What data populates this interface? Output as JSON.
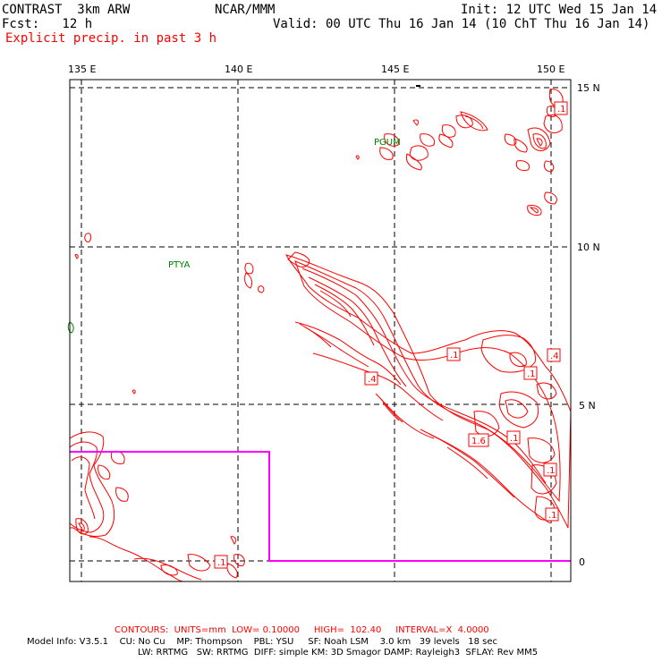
{
  "header": {
    "model_title": "CONTRAST  3km ARW",
    "org": "NCAR/MMM",
    "init": "Init: 12 UTC Wed 15 Jan 14",
    "fcst": "Fcst:   12 h",
    "valid": "Valid: 00 UTC Thu 16 Jan 14 (10 ChT Thu 16 Jan 14)",
    "field": "Explicit precip. in past 3 h"
  },
  "map": {
    "lon_labels": [
      "135 E",
      "140 E",
      "145 E",
      "150 E"
    ],
    "lat_labels": [
      "15 N",
      "10 N",
      "5 N",
      "0"
    ],
    "stations": [
      "PGUM",
      "PTYA"
    ],
    "contour_labels": [
      ".1",
      ".1",
      ".4",
      ".1",
      ".4",
      "1.6",
      ".1",
      ".1",
      ".1",
      ".1"
    ],
    "colors": {
      "contour": "#ff0000",
      "domain_box": "#ff00ff",
      "station": "#008000",
      "grid": "#000000"
    }
  },
  "footer": {
    "contours": "CONTOURS:  UNITS=mm  LOW= 0.10000     HIGH=  102.40     INTERVAL=X  4.0000",
    "model_info_1": "Model Info: V3.5.1    CU: No Cu    MP: Thompson    PBL: YSU     SF: Noah LSM    3.0 km   39 levels   18 sec",
    "model_info_2": "LW: RRTMG   SW: RRTMG  DIFF: simple KM: 3D Smagor DAMP: Rayleigh3  SFLAY: Rev MM5"
  }
}
